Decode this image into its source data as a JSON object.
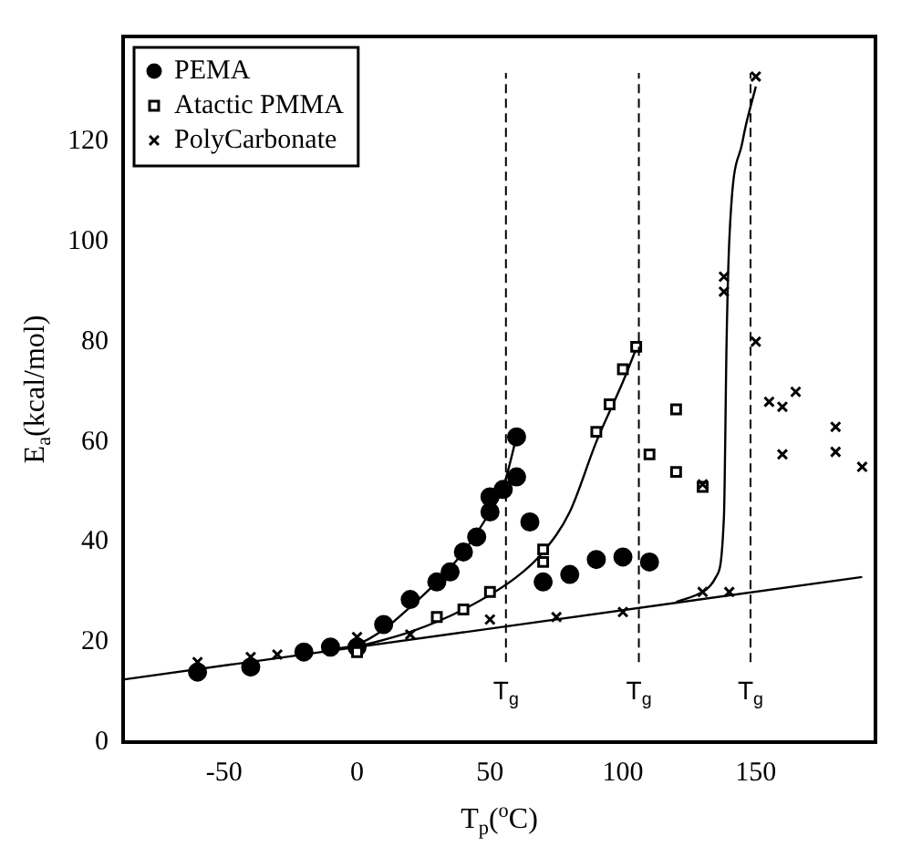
{
  "chart_data": {
    "type": "scatter",
    "xlabel": "T$_{p}$($^{o}$C)",
    "ylabel": "E$_{a}$(kcal/mol)",
    "xlim": [
      -88,
      195
    ],
    "ylim": [
      0,
      141
    ],
    "xticks": [
      -50,
      0,
      50,
      100,
      150
    ],
    "yticks": [
      0,
      20,
      40,
      60,
      80,
      100,
      120
    ],
    "grid": false,
    "legend": "top left",
    "series": [
      {
        "name": "PEMA",
        "color": "#000000",
        "marker": "circle",
        "x": [
          -60,
          -40,
          -20,
          -10,
          0,
          10,
          20,
          30,
          35,
          40,
          45,
          50,
          50,
          55,
          60,
          60,
          65,
          70,
          80,
          90,
          100,
          110
        ],
        "values": [
          14,
          15,
          18,
          19,
          19,
          23.5,
          28.5,
          32,
          34,
          38,
          41,
          46,
          49,
          50.5,
          53,
          61,
          44,
          32,
          33.5,
          36.5,
          37,
          36
        ]
      },
      {
        "name": "Atactic PMMA",
        "color": "#000000",
        "marker": "square",
        "x": [
          0,
          30,
          40,
          50,
          70,
          70,
          90,
          95,
          100,
          105,
          110,
          120,
          120,
          130
        ],
        "values": [
          18,
          25,
          26.5,
          30,
          36,
          38.5,
          62,
          67.5,
          74.5,
          79,
          57.5,
          66.5,
          54,
          51
        ]
      },
      {
        "name": "PolyCarbonate",
        "color": "#000000",
        "marker": "cross",
        "x": [
          -60,
          -40,
          -30,
          0,
          20,
          50,
          75,
          100,
          130,
          140,
          130,
          138,
          138,
          150,
          150,
          155,
          160,
          165,
          160,
          180,
          180,
          190
        ],
        "values": [
          16,
          17,
          17.5,
          21,
          21.5,
          24.5,
          25,
          26,
          30,
          30,
          51.5,
          90,
          93,
          133,
          80,
          68,
          67,
          70,
          57.5,
          63,
          58,
          55
        ]
      },
      {
        "type": "line",
        "color": "#000000",
        "marker": "none",
        "x": [
          -10,
          0,
          10,
          20,
          30,
          40,
          50,
          55,
          60
        ],
        "values": [
          18.5,
          19.5,
          22.5,
          27,
          32,
          38,
          46,
          51,
          61
        ]
      },
      {
        "type": "line",
        "color": "#000000",
        "marker": "none",
        "x": [
          0,
          20,
          40,
          60,
          70,
          80,
          90,
          100,
          106
        ],
        "values": [
          19,
          22,
          26.5,
          33,
          38,
          46,
          60,
          72,
          80
        ]
      },
      {
        "type": "line",
        "color": "#000000",
        "marker": "none",
        "x": [
          120,
          130,
          135,
          138,
          139,
          140,
          145,
          150
        ],
        "values": [
          28,
          30,
          33,
          45,
          80,
          100,
          120,
          131
        ]
      },
      {
        "type": "line",
        "color": "#000000",
        "marker": "none",
        "x": [
          -88,
          190
        ],
        "values": [
          12.5,
          33
        ]
      }
    ],
    "ref_lines": [
      {
        "axis": "x",
        "value": 56,
        "label": "T$_{g}$",
        "line_style": "dashed"
      },
      {
        "axis": "x",
        "value": 106,
        "label": "T$_{g}$",
        "line_style": "dashed"
      },
      {
        "axis": "x",
        "value": 148,
        "label": "T$_{g}$",
        "line_style": "dashed"
      }
    ]
  }
}
